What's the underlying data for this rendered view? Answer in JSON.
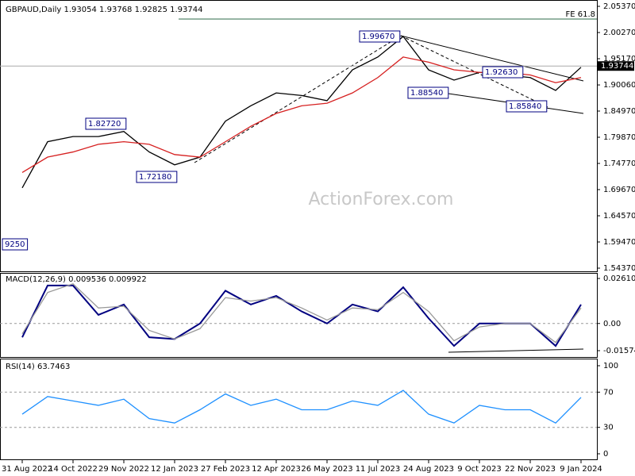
{
  "chart_data": [
    {
      "type": "line",
      "title": "GBPAUD,Daily 1.93054 1.93768 1.92825 1.93744",
      "ylim": [
        1.5437,
        2.0537
      ],
      "yticks": [
        {
          "value": 2.0537,
          "label": "2.05370"
        },
        {
          "value": 2.0027,
          "label": "2.00270"
        },
        {
          "value": 1.9517,
          "label": "1.95170"
        },
        {
          "value": 1.9006,
          "label": "1.90060"
        },
        {
          "value": 1.8497,
          "label": "1.84970"
        },
        {
          "value": 1.7987,
          "label": "1.79870"
        },
        {
          "value": 1.7477,
          "label": "1.74770"
        },
        {
          "value": 1.6967,
          "label": "1.69670"
        },
        {
          "value": 1.6457,
          "label": "1.64570"
        },
        {
          "value": 1.5947,
          "label": "1.59470"
        },
        {
          "value": 1.5437,
          "label": "1.54370"
        }
      ],
      "series": [
        {
          "color": "#000000",
          "values": [
            1.7,
            1.79,
            1.8,
            1.8,
            1.81,
            1.77,
            1.745,
            1.76,
            1.83,
            1.86,
            1.885,
            1.88,
            1.87,
            1.93,
            1.955,
            1.995,
            1.93,
            1.91,
            1.925,
            1.92,
            1.915,
            1.89,
            1.935
          ]
        },
        {
          "color": "#d62020",
          "values": [
            1.73,
            1.76,
            1.77,
            1.785,
            1.79,
            1.785,
            1.765,
            1.76,
            1.79,
            1.82,
            1.845,
            1.86,
            1.865,
            1.885,
            1.915,
            1.955,
            1.945,
            1.93,
            1.925,
            1.925,
            1.92,
            1.905,
            1.915
          ]
        }
      ],
      "annotations": [
        "1.99670",
        "1.82720",
        "1.72180",
        "1.88540",
        "1.92630",
        "1.85840",
        "9250"
      ],
      "reference_lines": [
        {
          "label": "FE 61.8",
          "value": 2.029
        }
      ],
      "last_price": {
        "value": 1.93744,
        "label": "1.93744"
      },
      "watermark": "ActionForex.com"
    },
    {
      "type": "line",
      "title": "MACD(12,26,9) 0.009536 0.009922",
      "ylim": [
        -0.015744,
        0.026104
      ],
      "yticks": [
        {
          "value": 0.026104,
          "label": "0.026104"
        },
        {
          "value": 0,
          "label": "0.00"
        },
        {
          "value": -0.015744,
          "label": "-0.015744"
        }
      ],
      "series": [
        {
          "color": "#000080",
          "values": [
            -0.008,
            0.022,
            0.022,
            0.005,
            0.011,
            -0.008,
            -0.009,
            0,
            0.019,
            0.011,
            0.016,
            0.007,
            0,
            0.011,
            0.007,
            0.021,
            0.003,
            -0.013,
            0,
            0,
            0,
            -0.013,
            0.011
          ]
        },
        {
          "color": "#999999",
          "values": [
            -0.006,
            0.018,
            0.023,
            0.009,
            0.01,
            -0.004,
            -0.009,
            -0.003,
            0.015,
            0.013,
            0.015,
            0.009,
            0.002,
            0.009,
            0.008,
            0.018,
            0.007,
            -0.01,
            -0.002,
            0,
            0,
            -0.011,
            0.009
          ]
        }
      ],
      "zero_line": true
    },
    {
      "type": "line",
      "title": "RSI(14) 63.7463",
      "ylim": [
        0,
        100
      ],
      "yticks": [
        100,
        70,
        30,
        0
      ],
      "levels": [
        70,
        30
      ],
      "categories": [
        "31 Aug 2022",
        null,
        "14 Oct 2022",
        null,
        "29 Nov 2022",
        null,
        "12 Jan 2023",
        null,
        "27 Feb 2023",
        null,
        "12 Apr 2023",
        null,
        "26 May 2023",
        null,
        "11 Jul 2023",
        null,
        "24 Aug 2023",
        null,
        "9 Oct 2023",
        null,
        "22 Nov 2023",
        null,
        "9 Jan 2024"
      ],
      "series": [
        {
          "color": "#1e90ff",
          "values": [
            45,
            65,
            60,
            55,
            62,
            40,
            35,
            50,
            68,
            55,
            62,
            50,
            50,
            60,
            55,
            72,
            45,
            35,
            55,
            50,
            50,
            35,
            64
          ]
        }
      ]
    }
  ]
}
